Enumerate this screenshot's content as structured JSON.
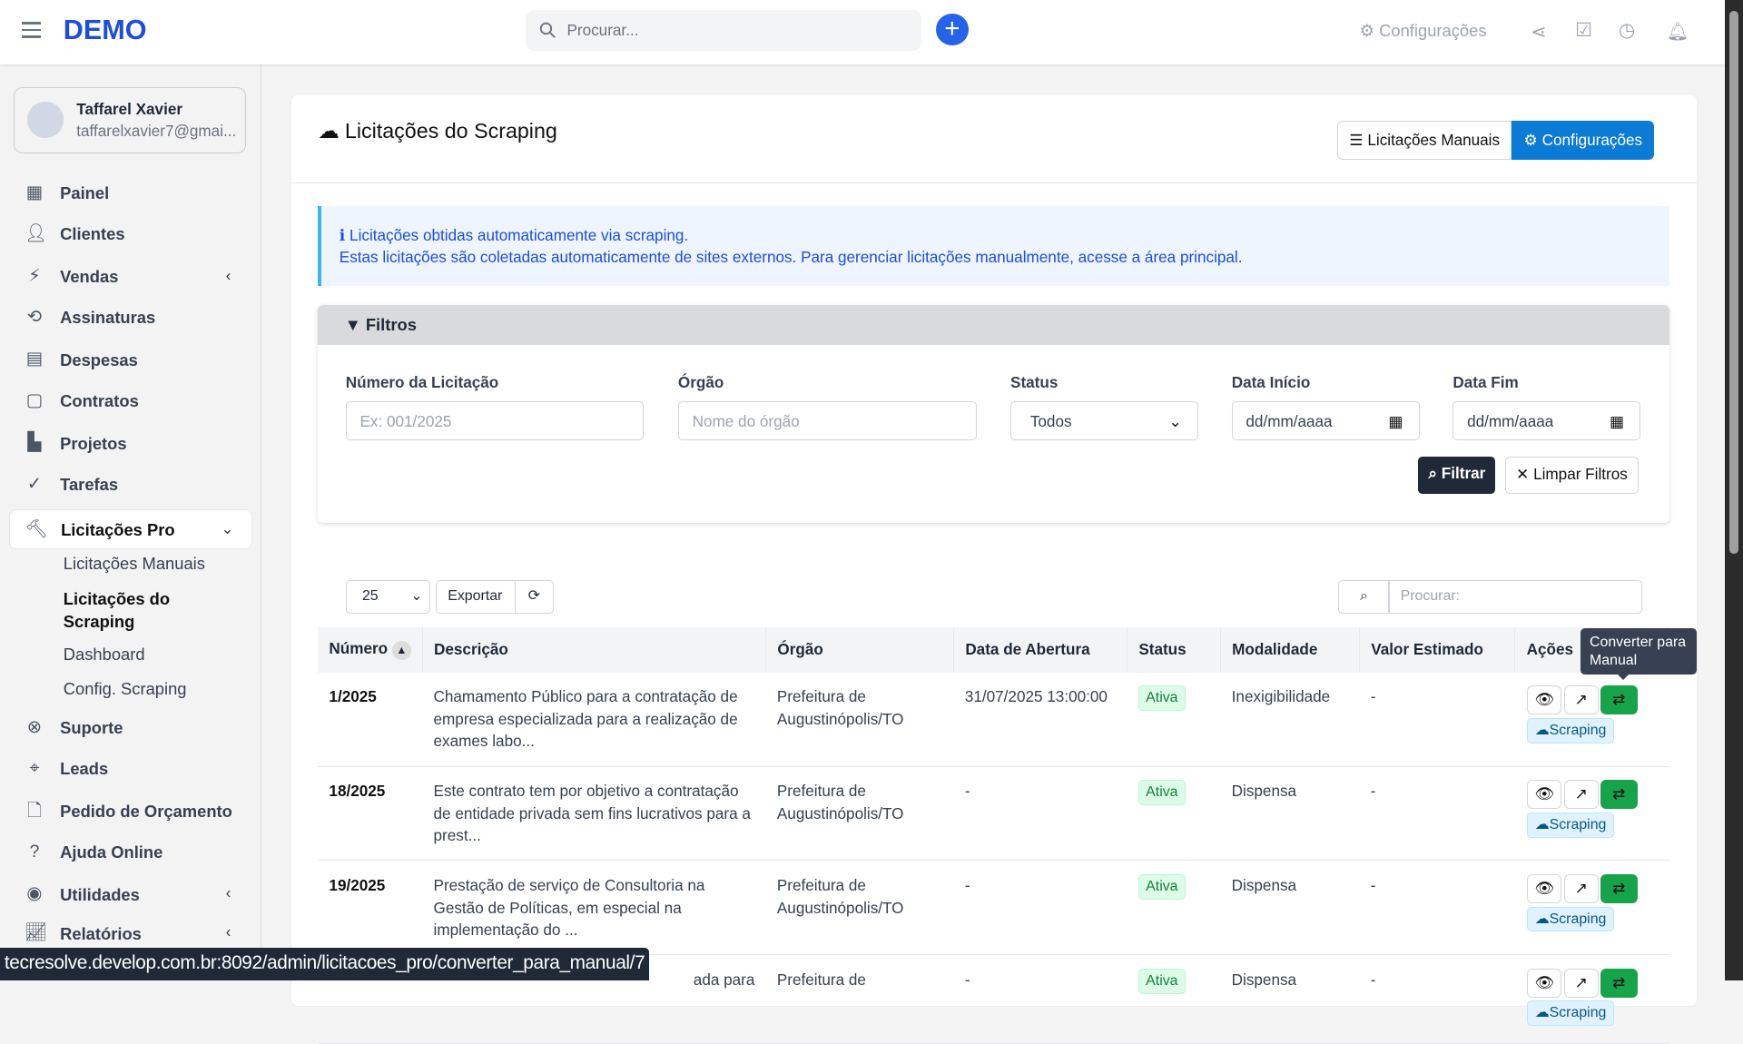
{
  "topbar": {
    "logo": "DEMO",
    "search_placeholder": "Procurar...",
    "settings_label": "Configurações"
  },
  "user": {
    "name": "Taffarel Xavier",
    "email": "taffarelxavier7@gmai..."
  },
  "sidebar": {
    "items": [
      {
        "label": "Painel",
        "icon": "dashboard-icon"
      },
      {
        "label": "Clientes",
        "icon": "user-icon"
      },
      {
        "label": "Vendas",
        "icon": "bolt-icon"
      },
      {
        "label": "Assinaturas",
        "icon": "repeat-icon"
      },
      {
        "label": "Despesas",
        "icon": "document-icon"
      },
      {
        "label": "Contratos",
        "icon": "contract-icon"
      },
      {
        "label": "Projetos",
        "icon": "chart-icon"
      },
      {
        "label": "Tarefas",
        "icon": "check-circle-icon"
      },
      {
        "label": "Licitações Pro",
        "icon": "gavel-icon"
      },
      {
        "label": "Suporte",
        "icon": "lifebuoy-icon"
      },
      {
        "label": "Leads",
        "icon": "crosshair-icon"
      },
      {
        "label": "Pedido de Orçamento",
        "icon": "file-icon"
      },
      {
        "label": "Ajuda Online",
        "icon": "question-icon"
      },
      {
        "label": "Utilidades",
        "icon": "dot-circle-icon"
      },
      {
        "label": "Relatórios",
        "icon": "line-chart-icon"
      }
    ],
    "sub": [
      "Licitações Manuais",
      "Licitações do Scraping",
      "Dashboard",
      "Config. Scraping"
    ]
  },
  "page": {
    "title": "Licitações do Scraping",
    "btn_manual": "Licitações Manuais",
    "btn_config": "Configurações",
    "alert_title": "Licitações obtidas automaticamente via scraping.",
    "alert_text": "Estas licitações são coletadas automaticamente de sites externos. Para gerenciar licitações manualmente, acesse a área principal."
  },
  "filters": {
    "title": "Filtros",
    "numero_label": "Número da Licitação",
    "numero_placeholder": "Ex: 001/2025",
    "orgao_label": "Órgão",
    "orgao_placeholder": "Nome do órgão",
    "status_label": "Status",
    "status_value": "Todos",
    "inicio_label": "Data Início",
    "fim_label": "Data Fim",
    "date_placeholder": "dd/mm/aaaa",
    "filter_btn": "Filtrar",
    "clear_btn": "Limpar Filtros"
  },
  "table_tools": {
    "page_size": "25",
    "export": "Exportar",
    "search_placeholder": "Procurar:"
  },
  "table": {
    "headers": [
      "Número",
      "Descrição",
      "Órgão",
      "Data de Abertura",
      "Status",
      "Modalidade",
      "Valor Estimado",
      "Ações"
    ],
    "rows": [
      {
        "numero": "1/2025",
        "descricao": "Chamamento Público para a contratação de empresa especializada para a realização de exames labo...",
        "orgao": "Prefeitura de Augustinópolis/TO",
        "data": "31/07/2025 13:00:00",
        "status": "Ativa",
        "modalidade": "Inexigibilidade",
        "valor": "-"
      },
      {
        "numero": "18/2025",
        "descricao": "Este contrato tem por objetivo a contratação de entidade privada sem fins lucrativos para a prest...",
        "orgao": "Prefeitura de Augustinópolis/TO",
        "data": "-",
        "status": "Ativa",
        "modalidade": "Dispensa",
        "valor": "-"
      },
      {
        "numero": "19/2025",
        "descricao": "Prestação de serviço de Consultoria na Gestão de Políticas, em especial na implementação do ...",
        "orgao": "Prefeitura de Augustinópolis/TO",
        "data": "-",
        "status": "Ativa",
        "modalidade": "Dispensa",
        "valor": "-"
      },
      {
        "numero": "",
        "descricao": "ada para",
        "orgao": "Prefeitura de",
        "data": "-",
        "status": "Ativa",
        "modalidade": "Dispensa",
        "valor": "-"
      }
    ],
    "source_badge": "Scraping"
  },
  "tooltip": "Converter para Manual",
  "status_bar": "tecresolve.develop.com.br:8092/admin/licitacoes_pro/converter_para_manual/7",
  "colors": {
    "brand": "#1d4ed8",
    "primary": "#0b7bd6",
    "success": "#16a34a"
  }
}
